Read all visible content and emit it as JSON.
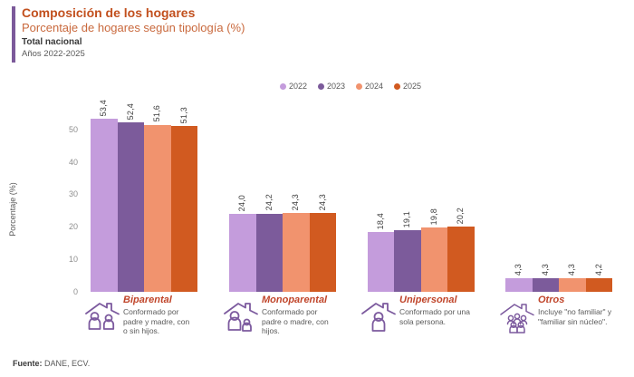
{
  "header": {
    "title": "Composición de los hogares",
    "subtitle": "Porcentaje de hogares según tipología (%)",
    "coverage": "Total nacional",
    "years": "Años 2022-2025"
  },
  "colors": {
    "accent_purple": "#7C5A9A",
    "title_orange": "#C2501E",
    "subtitle_orange": "#C9693D",
    "category_label_red": "#C0452A",
    "icon_purple": "#7C5A9E",
    "series_2022": "#C49CDC",
    "series_2023": "#7C5B9B",
    "series_2024": "#F1936E",
    "series_2025": "#D15A20"
  },
  "chart_data": {
    "type": "bar",
    "title": "Porcentaje de hogares según tipología (%)",
    "xlabel": "",
    "ylabel": "Porcentaje (%)",
    "ylim": [
      0,
      50
    ],
    "yticks": [
      0,
      10,
      20,
      30,
      40,
      50
    ],
    "grid": false,
    "legend_position": "top-center",
    "decimal_separator": ",",
    "value_labels_rotated": true,
    "categories": [
      "Biparental",
      "Monoparental",
      "Unipersonal",
      "Otros"
    ],
    "series": [
      {
        "name": "2022",
        "color": "#C49CDC",
        "values": [
          53.4,
          24.0,
          18.4,
          4.3
        ]
      },
      {
        "name": "2023",
        "color": "#7C5B9B",
        "values": [
          52.4,
          24.2,
          19.1,
          4.3
        ]
      },
      {
        "name": "2024",
        "color": "#F1936E",
        "values": [
          51.6,
          24.3,
          19.8,
          4.3
        ]
      },
      {
        "name": "2025",
        "color": "#D15A20",
        "values": [
          51.3,
          24.3,
          20.2,
          4.2
        ]
      }
    ]
  },
  "category_details": [
    {
      "name": "Biparental",
      "description": "Conformado por padre y madre, con o sin hijos.",
      "icon": "two-parents-family-home-icon"
    },
    {
      "name": "Monoparental",
      "description": "Conformado por padre o madre, con hijos.",
      "icon": "single-parent-family-home-icon"
    },
    {
      "name": "Unipersonal",
      "description": "Conformado por una sola persona.",
      "icon": "single-person-home-icon"
    },
    {
      "name": "Otros",
      "description": "Incluye \"no familiar\" y \"familiar sin núcleo\".",
      "icon": "group-household-home-icon"
    }
  ],
  "footer": {
    "source_label": "Fuente:",
    "source_value": "DANE, ECV."
  }
}
